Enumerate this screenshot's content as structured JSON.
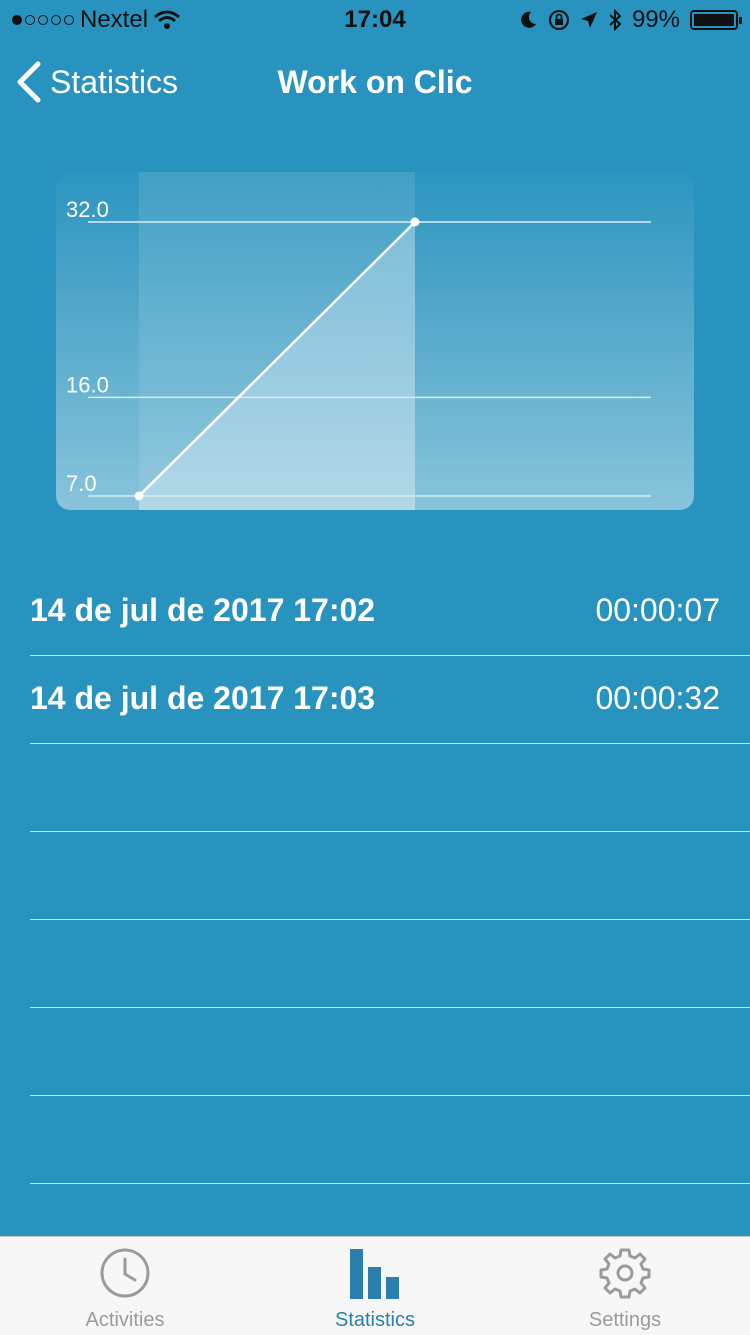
{
  "status_bar": {
    "carrier": "Nextel",
    "time": "17:04",
    "battery": "99%",
    "battery_level": 0.99
  },
  "nav": {
    "back_label": "Statistics",
    "title": "Work on Clic"
  },
  "chart_data": {
    "type": "line",
    "x": [
      1,
      2
    ],
    "values": [
      7,
      32
    ],
    "yticks": [
      "32.0",
      "16.0",
      "7.0"
    ],
    "ylim": [
      7,
      32
    ],
    "grid": true,
    "colors": {
      "line": "#ffffff",
      "grid": "#d6ecf5"
    }
  },
  "sessions": [
    {
      "date": "14 de jul de 2017 17:02",
      "duration": "00:00:07"
    },
    {
      "date": "14 de jul de 2017 17:03",
      "duration": "00:00:32"
    }
  ],
  "empty_rows": 5,
  "tabs": [
    {
      "label": "Activities",
      "icon": "clock-icon",
      "active": false
    },
    {
      "label": "Statistics",
      "icon": "bar-chart-icon",
      "active": true
    },
    {
      "label": "Settings",
      "icon": "gear-icon",
      "active": false
    }
  ],
  "colors": {
    "background": "#2893be",
    "accent": "#2a7fae",
    "tab_inactive": "#9b9b9b"
  }
}
